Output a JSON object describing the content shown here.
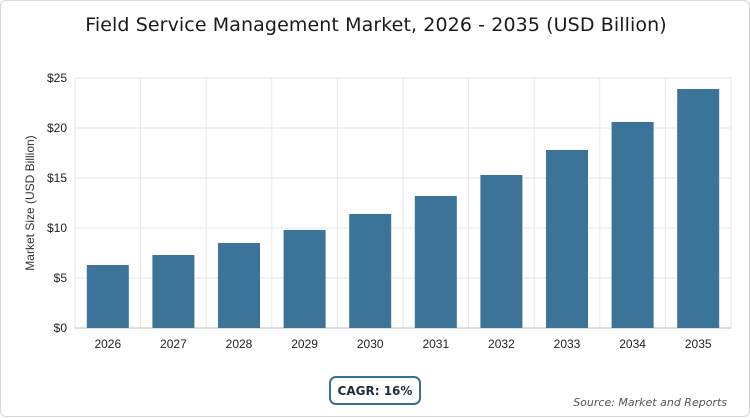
{
  "chart_data": {
    "type": "bar",
    "title": "Field Service Management Market, 2026 - 2035 (USD Billion)",
    "ylabel": "Market Size (USD Billion)",
    "xlabel": "",
    "categories": [
      "2026",
      "2027",
      "2028",
      "2029",
      "2030",
      "2031",
      "2032",
      "2033",
      "2034",
      "2035"
    ],
    "values": [
      6.3,
      7.3,
      8.5,
      9.8,
      11.4,
      13.2,
      15.3,
      17.8,
      20.6,
      23.9
    ],
    "ylim": [
      0,
      25
    ],
    "yticks": [
      0,
      5,
      10,
      15,
      20,
      25
    ],
    "ytick_labels": [
      "$0",
      "$5",
      "$10",
      "$15",
      "$20",
      "$25"
    ],
    "grid": true,
    "bar_color": "#3b7399"
  },
  "badge": {
    "cagr_label": "CAGR: 16%"
  },
  "footer": {
    "source": "Source: Market and Reports"
  },
  "colors": {
    "bar": "#3b7399",
    "badge_border": "#3a6f95",
    "grid": "#e6e6e6"
  }
}
